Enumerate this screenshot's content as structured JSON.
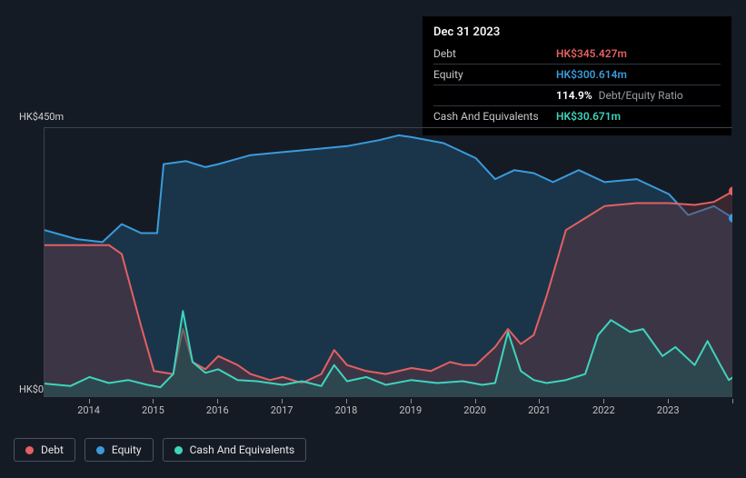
{
  "tooltip": {
    "date": "Dec 31 2023",
    "rows": [
      {
        "label": "Debt",
        "value": "HK$345.427m",
        "color": "#e46062"
      },
      {
        "label": "Equity",
        "value": "HK$300.614m",
        "color": "#3a9bdc"
      },
      {
        "label": "",
        "value": "114.9%",
        "sub": "Debt/Equity Ratio",
        "color": "#ffffff"
      },
      {
        "label": "Cash And Equivalents",
        "value": "HK$30.671m",
        "color": "#3fd4bd"
      }
    ]
  },
  "chart": {
    "type": "area",
    "background": "#151b24",
    "plot_border": "#3a4250",
    "y": {
      "min": 0,
      "max": 450,
      "ticks": [
        0,
        450
      ],
      "tick_labels": [
        "HK$0",
        "HK$450m"
      ],
      "label_fontsize": 11,
      "label_color": "#d0d0d0"
    },
    "x": {
      "min": 2013.3,
      "max": 2024.0,
      "ticks": [
        2013,
        2014,
        2015,
        2016,
        2017,
        2018,
        2019,
        2020,
        2021,
        2022,
        2023,
        2024
      ],
      "labels": [
        "2014",
        "2015",
        "2016",
        "2017",
        "2018",
        "2019",
        "2020",
        "2021",
        "2022",
        "2023"
      ],
      "label_fontsize": 11,
      "label_color": "#c0c0c0"
    },
    "annotation_year": 2023.95,
    "series": [
      {
        "name": "Equity",
        "color": "#3a9bdc",
        "fill": "#1f4a6a",
        "fill_opacity": 0.55,
        "line_width": 2,
        "points": [
          [
            2013.3,
            280
          ],
          [
            2013.8,
            265
          ],
          [
            2014.2,
            260
          ],
          [
            2014.5,
            290
          ],
          [
            2014.8,
            275
          ],
          [
            2015.05,
            275
          ],
          [
            2015.15,
            390
          ],
          [
            2015.5,
            395
          ],
          [
            2015.8,
            385
          ],
          [
            2016.0,
            390
          ],
          [
            2016.5,
            405
          ],
          [
            2017.0,
            410
          ],
          [
            2017.5,
            415
          ],
          [
            2018.0,
            420
          ],
          [
            2018.5,
            430
          ],
          [
            2018.8,
            438
          ],
          [
            2019.0,
            435
          ],
          [
            2019.5,
            425
          ],
          [
            2020.0,
            400
          ],
          [
            2020.3,
            365
          ],
          [
            2020.6,
            380
          ],
          [
            2020.9,
            375
          ],
          [
            2021.2,
            360
          ],
          [
            2021.6,
            380
          ],
          [
            2022.0,
            360
          ],
          [
            2022.5,
            365
          ],
          [
            2023.0,
            340
          ],
          [
            2023.3,
            305
          ],
          [
            2023.7,
            320
          ],
          [
            2024.0,
            300
          ]
        ]
      },
      {
        "name": "Debt",
        "color": "#e46062",
        "fill": "#6b3741",
        "fill_opacity": 0.42,
        "line_width": 2,
        "points": [
          [
            2013.3,
            255
          ],
          [
            2014.0,
            255
          ],
          [
            2014.3,
            255
          ],
          [
            2014.5,
            240
          ],
          [
            2014.8,
            120
          ],
          [
            2015.0,
            45
          ],
          [
            2015.3,
            40
          ],
          [
            2015.45,
            115
          ],
          [
            2015.6,
            60
          ],
          [
            2015.8,
            48
          ],
          [
            2016.0,
            70
          ],
          [
            2016.3,
            55
          ],
          [
            2016.5,
            40
          ],
          [
            2016.8,
            30
          ],
          [
            2017.0,
            35
          ],
          [
            2017.3,
            25
          ],
          [
            2017.6,
            40
          ],
          [
            2017.8,
            80
          ],
          [
            2018.0,
            55
          ],
          [
            2018.3,
            45
          ],
          [
            2018.6,
            40
          ],
          [
            2019.0,
            50
          ],
          [
            2019.3,
            45
          ],
          [
            2019.6,
            60
          ],
          [
            2019.8,
            55
          ],
          [
            2020.0,
            55
          ],
          [
            2020.3,
            85
          ],
          [
            2020.5,
            115
          ],
          [
            2020.7,
            90
          ],
          [
            2020.9,
            105
          ],
          [
            2021.1,
            170
          ],
          [
            2021.4,
            280
          ],
          [
            2021.7,
            300
          ],
          [
            2022.0,
            320
          ],
          [
            2022.5,
            325
          ],
          [
            2023.0,
            325
          ],
          [
            2023.4,
            322
          ],
          [
            2023.7,
            327
          ],
          [
            2024.0,
            345
          ]
        ]
      },
      {
        "name": "Cash And Equivalents",
        "color": "#3fd4bd",
        "fill": "#1f5a55",
        "fill_opacity": 0.5,
        "line_width": 2,
        "points": [
          [
            2013.3,
            24
          ],
          [
            2013.7,
            20
          ],
          [
            2014.0,
            35
          ],
          [
            2014.3,
            25
          ],
          [
            2014.6,
            30
          ],
          [
            2014.9,
            22
          ],
          [
            2015.1,
            18
          ],
          [
            2015.3,
            40
          ],
          [
            2015.45,
            145
          ],
          [
            2015.6,
            60
          ],
          [
            2015.8,
            42
          ],
          [
            2016.0,
            48
          ],
          [
            2016.3,
            30
          ],
          [
            2016.6,
            28
          ],
          [
            2017.0,
            22
          ],
          [
            2017.3,
            28
          ],
          [
            2017.6,
            20
          ],
          [
            2017.8,
            55
          ],
          [
            2018.0,
            28
          ],
          [
            2018.3,
            35
          ],
          [
            2018.6,
            22
          ],
          [
            2019.0,
            30
          ],
          [
            2019.4,
            25
          ],
          [
            2019.8,
            28
          ],
          [
            2020.1,
            22
          ],
          [
            2020.3,
            25
          ],
          [
            2020.5,
            110
          ],
          [
            2020.7,
            45
          ],
          [
            2020.9,
            30
          ],
          [
            2021.1,
            25
          ],
          [
            2021.4,
            30
          ],
          [
            2021.7,
            40
          ],
          [
            2021.9,
            105
          ],
          [
            2022.1,
            130
          ],
          [
            2022.4,
            110
          ],
          [
            2022.6,
            115
          ],
          [
            2022.9,
            70
          ],
          [
            2023.1,
            85
          ],
          [
            2023.4,
            55
          ],
          [
            2023.6,
            95
          ],
          [
            2023.8,
            55
          ],
          [
            2023.93,
            30
          ],
          [
            2024.0,
            35
          ]
        ]
      }
    ],
    "legend": {
      "fontsize": 12,
      "border_color": "#4a5260",
      "items": [
        {
          "label": "Debt",
          "color": "#e46062"
        },
        {
          "label": "Equity",
          "color": "#3a9bdc"
        },
        {
          "label": "Cash And Equivalents",
          "color": "#3fd4bd"
        }
      ]
    }
  }
}
